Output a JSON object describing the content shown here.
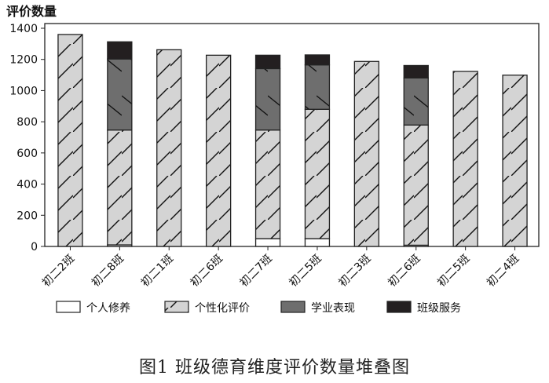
{
  "chart_data": {
    "type": "bar",
    "stacked": true,
    "title": "",
    "ylabel": "评价数量",
    "xlabel": "",
    "ylim": [
      0,
      1400
    ],
    "yticks": [
      0,
      200,
      400,
      600,
      800,
      1000,
      1200,
      1400
    ],
    "grid": false,
    "legend_position": "bottom",
    "categories": [
      "初二2班",
      "初二8班",
      "初二1班",
      "初二6班",
      "初二7班",
      "初二5班",
      "初二3班",
      "初二6班",
      "初二5班",
      "初二4班"
    ],
    "series": [
      {
        "name": "个人修养",
        "color": "#ffffff",
        "pattern": "none",
        "values": [
          0,
          10,
          0,
          0,
          50,
          50,
          0,
          8,
          0,
          0
        ]
      },
      {
        "name": "个性化评价",
        "color": "#d4d4d4",
        "pattern": "forward-diagonal",
        "values": [
          1360,
          737,
          1262,
          1227,
          697,
          830,
          1187,
          771,
          1123,
          1099
        ]
      },
      {
        "name": "学业表现",
        "color": "#6e6e6e",
        "pattern": "back-diagonal",
        "values": [
          0,
          456,
          0,
          0,
          394,
          285,
          0,
          302,
          0,
          0
        ]
      },
      {
        "name": "班级服务",
        "color": "#231f20",
        "pattern": "none",
        "values": [
          0,
          110,
          0,
          0,
          86,
          64,
          0,
          80,
          0,
          0
        ]
      }
    ]
  },
  "caption": "图1  班级德育维度评价数量堆叠图"
}
